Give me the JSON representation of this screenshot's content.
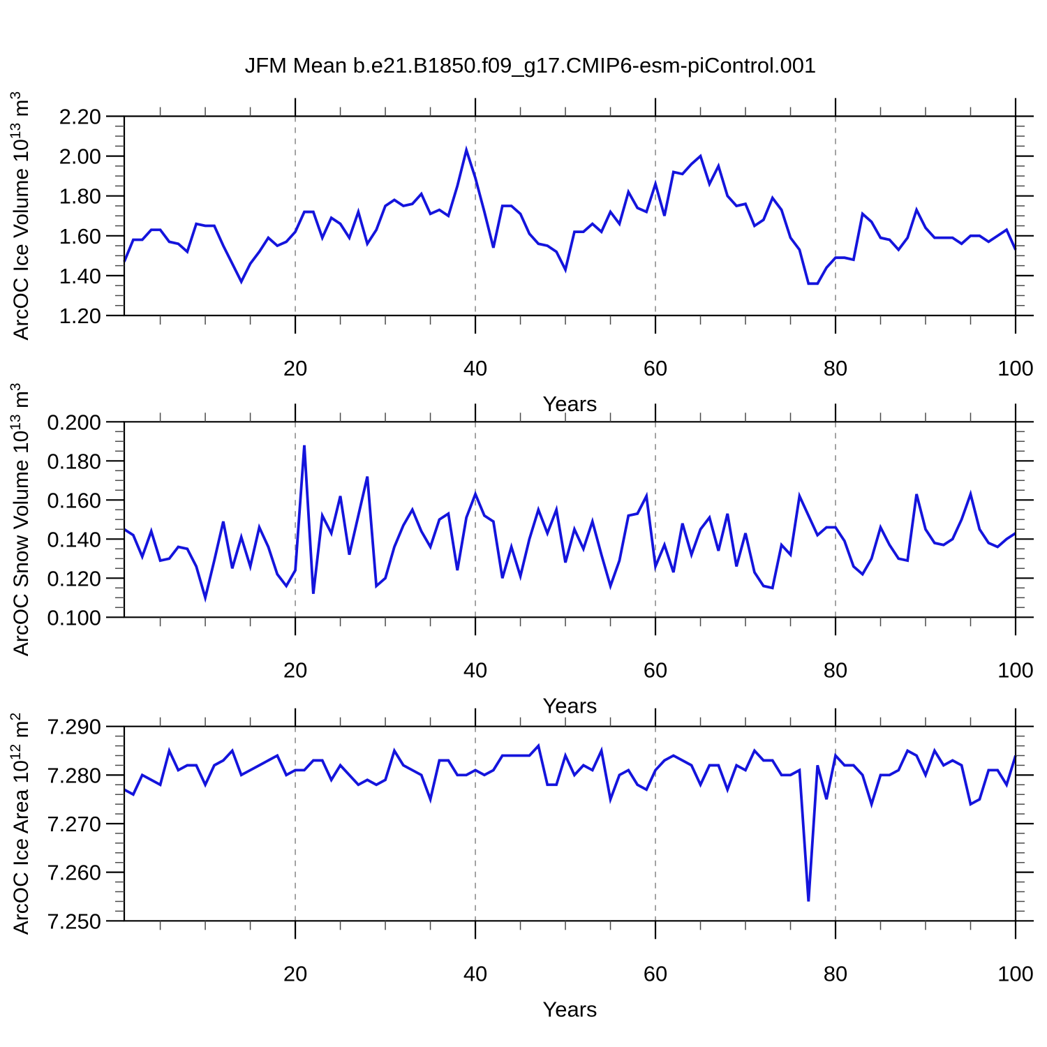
{
  "title": "JFM Mean b.e21.B1850.f09_g17.CMIP6-esm-piControl.001",
  "chart_data": [
    {
      "id": "ice-volume",
      "type": "line",
      "ylabel_text": "ArcOC Ice Volume 10^13 m^3",
      "ylabel_parts": [
        {
          "text": "ArcOC Ice Volume 10",
          "sup": false
        },
        {
          "text": "13",
          "sup": true
        },
        {
          "text": " m",
          "sup": false
        },
        {
          "text": "3",
          "sup": true
        }
      ],
      "xlabel": "Years",
      "x_start": 1,
      "x_end": 100,
      "xlim": [
        1,
        100
      ],
      "ylim": [
        1.2,
        2.2
      ],
      "ytick_major": 0.2,
      "ytick_minor": 0.05,
      "ytick_labels": [
        "2.20",
        "2.00",
        "1.80",
        "1.60",
        "1.40",
        "1.20"
      ],
      "xtick_major": [
        20,
        40,
        60,
        80,
        100
      ],
      "xtick_labels": [
        "20",
        "40",
        "60",
        "80",
        "100"
      ],
      "xtick_minor_step": 5,
      "grid_x": [
        20,
        40,
        60,
        80
      ],
      "grid_style": "dashed",
      "line_color": "#1414dc",
      "values": [
        1.47,
        1.58,
        1.58,
        1.63,
        1.63,
        1.57,
        1.56,
        1.52,
        1.66,
        1.65,
        1.65,
        1.55,
        1.46,
        1.37,
        1.46,
        1.52,
        1.59,
        1.55,
        1.57,
        1.62,
        1.72,
        1.72,
        1.59,
        1.69,
        1.66,
        1.59,
        1.72,
        1.56,
        1.63,
        1.75,
        1.78,
        1.75,
        1.76,
        1.81,
        1.71,
        1.73,
        1.7,
        1.85,
        2.03,
        1.89,
        1.72,
        1.54,
        1.75,
        1.75,
        1.71,
        1.61,
        1.56,
        1.55,
        1.52,
        1.43,
        1.62,
        1.62,
        1.66,
        1.62,
        1.72,
        1.66,
        1.82,
        1.74,
        1.72,
        1.86,
        1.7,
        1.92,
        1.91,
        1.96,
        2.0,
        1.86,
        1.95,
        1.8,
        1.75,
        1.76,
        1.65,
        1.68,
        1.79,
        1.73,
        1.59,
        1.53,
        1.36,
        1.36,
        1.44,
        1.49,
        1.49,
        1.48,
        1.71,
        1.67,
        1.59,
        1.58,
        1.53,
        1.59,
        1.73,
        1.64,
        1.59,
        1.59,
        1.59,
        1.56,
        1.6,
        1.6,
        1.57,
        1.6,
        1.63,
        1.53
      ]
    },
    {
      "id": "snow-volume",
      "type": "line",
      "ylabel_text": "ArcOC Snow Volume 10^13 m^3",
      "ylabel_parts": [
        {
          "text": "ArcOC Snow Volume 10",
          "sup": false
        },
        {
          "text": "13",
          "sup": true
        },
        {
          "text": " m",
          "sup": false
        },
        {
          "text": "3",
          "sup": true
        }
      ],
      "xlabel": "Years",
      "x_start": 1,
      "x_end": 100,
      "xlim": [
        1,
        100
      ],
      "ylim": [
        0.1,
        0.2
      ],
      "ytick_major": 0.02,
      "ytick_minor": 0.005,
      "ytick_labels": [
        "0.200",
        "0.180",
        "0.160",
        "0.140",
        "0.120",
        "0.100"
      ],
      "xtick_major": [
        20,
        40,
        60,
        80,
        100
      ],
      "xtick_labels": [
        "20",
        "40",
        "60",
        "80",
        "100"
      ],
      "xtick_minor_step": 5,
      "grid_x": [
        20,
        40,
        60,
        80
      ],
      "grid_style": "dashed",
      "line_color": "#1414dc",
      "values": [
        0.145,
        0.142,
        0.131,
        0.144,
        0.129,
        0.13,
        0.136,
        0.135,
        0.126,
        0.11,
        0.129,
        0.149,
        0.125,
        0.141,
        0.126,
        0.146,
        0.136,
        0.122,
        0.116,
        0.124,
        0.188,
        0.112,
        0.152,
        0.143,
        0.162,
        0.132,
        0.152,
        0.172,
        0.116,
        0.12,
        0.136,
        0.147,
        0.155,
        0.144,
        0.136,
        0.15,
        0.153,
        0.124,
        0.151,
        0.163,
        0.152,
        0.149,
        0.12,
        0.136,
        0.121,
        0.14,
        0.155,
        0.143,
        0.155,
        0.128,
        0.145,
        0.135,
        0.149,
        0.132,
        0.116,
        0.129,
        0.152,
        0.153,
        0.162,
        0.126,
        0.137,
        0.123,
        0.148,
        0.132,
        0.145,
        0.151,
        0.134,
        0.153,
        0.126,
        0.143,
        0.123,
        0.116,
        0.115,
        0.137,
        0.132,
        0.162,
        0.152,
        0.142,
        0.146,
        0.146,
        0.139,
        0.126,
        0.122,
        0.13,
        0.146,
        0.137,
        0.13,
        0.129,
        0.163,
        0.145,
        0.138,
        0.137,
        0.14,
        0.15,
        0.163,
        0.145,
        0.138,
        0.136,
        0.14,
        0.143
      ]
    },
    {
      "id": "ice-area",
      "type": "line",
      "ylabel_text": "ArcOC Ice Area 10^12 m^2",
      "ylabel_parts": [
        {
          "text": "ArcOC Ice Area 10",
          "sup": false
        },
        {
          "text": "12",
          "sup": true
        },
        {
          "text": " m",
          "sup": false
        },
        {
          "text": "2",
          "sup": true
        }
      ],
      "xlabel": "Years",
      "x_start": 1,
      "x_end": 100,
      "xlim": [
        1,
        100
      ],
      "ylim": [
        7.25,
        7.29
      ],
      "ytick_major": 0.01,
      "ytick_minor": 0.002,
      "ytick_labels": [
        "7.290",
        "7.280",
        "7.270",
        "7.260",
        "7.250"
      ],
      "xtick_major": [
        20,
        40,
        60,
        80,
        100
      ],
      "xtick_labels": [
        "20",
        "40",
        "60",
        "80",
        "100"
      ],
      "xtick_minor_step": 5,
      "grid_x": [
        20,
        40,
        60,
        80
      ],
      "grid_style": "dashed",
      "line_color": "#1414dc",
      "values": [
        7.277,
        7.276,
        7.28,
        7.279,
        7.278,
        7.285,
        7.281,
        7.282,
        7.282,
        7.278,
        7.282,
        7.283,
        7.285,
        7.28,
        7.281,
        7.282,
        7.283,
        7.284,
        7.28,
        7.281,
        7.281,
        7.283,
        7.283,
        7.279,
        7.282,
        7.28,
        7.278,
        7.279,
        7.278,
        7.279,
        7.285,
        7.282,
        7.281,
        7.28,
        7.275,
        7.283,
        7.283,
        7.28,
        7.28,
        7.281,
        7.28,
        7.281,
        7.284,
        7.284,
        7.284,
        7.284,
        7.286,
        7.278,
        7.278,
        7.284,
        7.28,
        7.282,
        7.281,
        7.285,
        7.275,
        7.28,
        7.281,
        7.278,
        7.277,
        7.281,
        7.283,
        7.284,
        7.283,
        7.282,
        7.278,
        7.282,
        7.282,
        7.277,
        7.282,
        7.281,
        7.285,
        7.283,
        7.283,
        7.28,
        7.28,
        7.281,
        7.254,
        7.282,
        7.275,
        7.284,
        7.282,
        7.282,
        7.28,
        7.274,
        7.28,
        7.28,
        7.281,
        7.285,
        7.284,
        7.28,
        7.285,
        7.282,
        7.283,
        7.282,
        7.274,
        7.275,
        7.281,
        7.281,
        7.278,
        7.284
      ]
    }
  ],
  "colors": {
    "line": "#1414dc",
    "axis": "#000000",
    "minor_tick": "#4a4a4a",
    "grid": "#8c8c8c",
    "background": "#ffffff"
  }
}
